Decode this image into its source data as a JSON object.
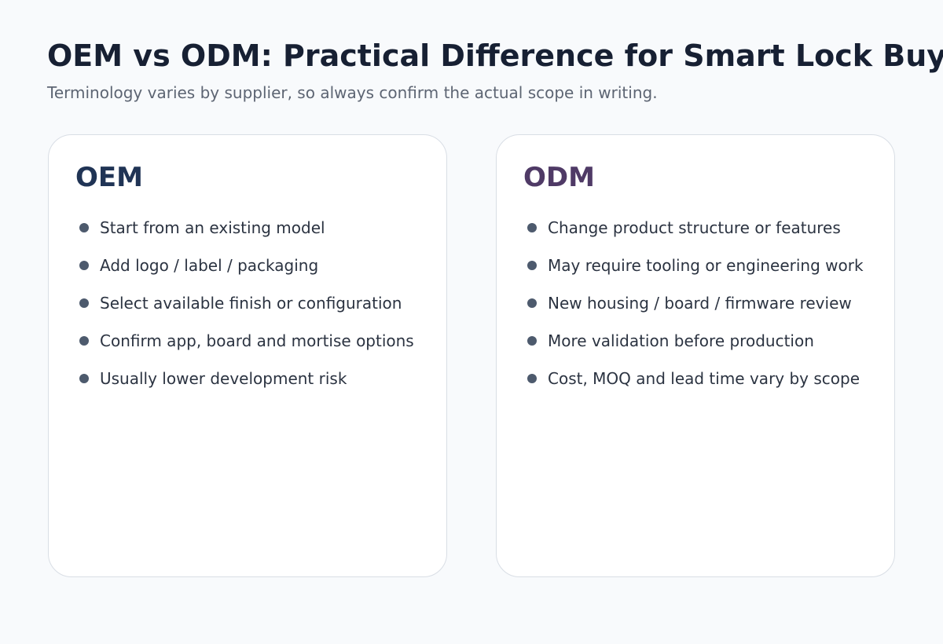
{
  "header": {
    "title": "OEM vs ODM: Practical Difference for Smart Lock Buy",
    "subtitle": "Terminology varies by supplier, so always confirm the actual scope in writing."
  },
  "colors": {
    "oem_title": "#203455",
    "odm_title": "#4f3a66",
    "bullet": "#4d5a6d",
    "card_border": "#d9dee5"
  },
  "cards": [
    {
      "title": "OEM",
      "items": [
        "Start from an existing model",
        "Add logo / label / packaging",
        "Select available finish or configuration",
        "Confirm app, board and mortise options",
        "Usually lower development risk"
      ]
    },
    {
      "title": "ODM",
      "items": [
        "Change product structure or features",
        "May require tooling or engineering work",
        "New housing / board / firmware review",
        "More validation before production",
        "Cost, MOQ and lead time vary by scope"
      ]
    }
  ]
}
